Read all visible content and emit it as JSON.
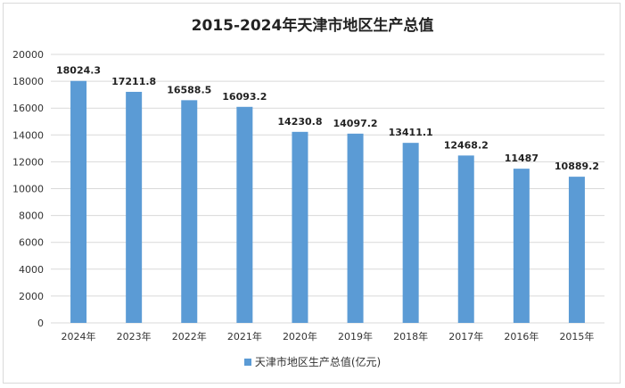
{
  "chart_data": {
    "type": "bar",
    "title": "2015-2024年天津市地区生产总值",
    "categories": [
      "2024年",
      "2023年",
      "2022年",
      "2021年",
      "2020年",
      "2019年",
      "2018年",
      "2017年",
      "2016年",
      "2015年"
    ],
    "series": [
      {
        "name": "天津市地区生产总值(亿元)",
        "values": [
          18024.3,
          17211.8,
          16588.5,
          16093.2,
          14230.8,
          14097.2,
          13411.1,
          12468.2,
          11487,
          10889.2
        ],
        "labels": [
          "18024.3",
          "17211.8",
          "16588.5",
          "16093.2",
          "14230.8",
          "14097.2",
          "13411.1",
          "12468.2",
          "11487",
          "10889.2"
        ]
      }
    ],
    "ylim": [
      0,
      20000
    ],
    "yticks": [
      "0",
      "2000",
      "4000",
      "6000",
      "8000",
      "10000",
      "12000",
      "14000",
      "16000",
      "18000",
      "20000"
    ],
    "ytick_values": [
      0,
      2000,
      4000,
      6000,
      8000,
      10000,
      12000,
      14000,
      16000,
      18000,
      20000
    ],
    "grid": true,
    "legend_position": "bottom",
    "colors": {
      "bar": "#5b9bd5",
      "grid": "#d9d9d9",
      "text": "#333333"
    }
  }
}
